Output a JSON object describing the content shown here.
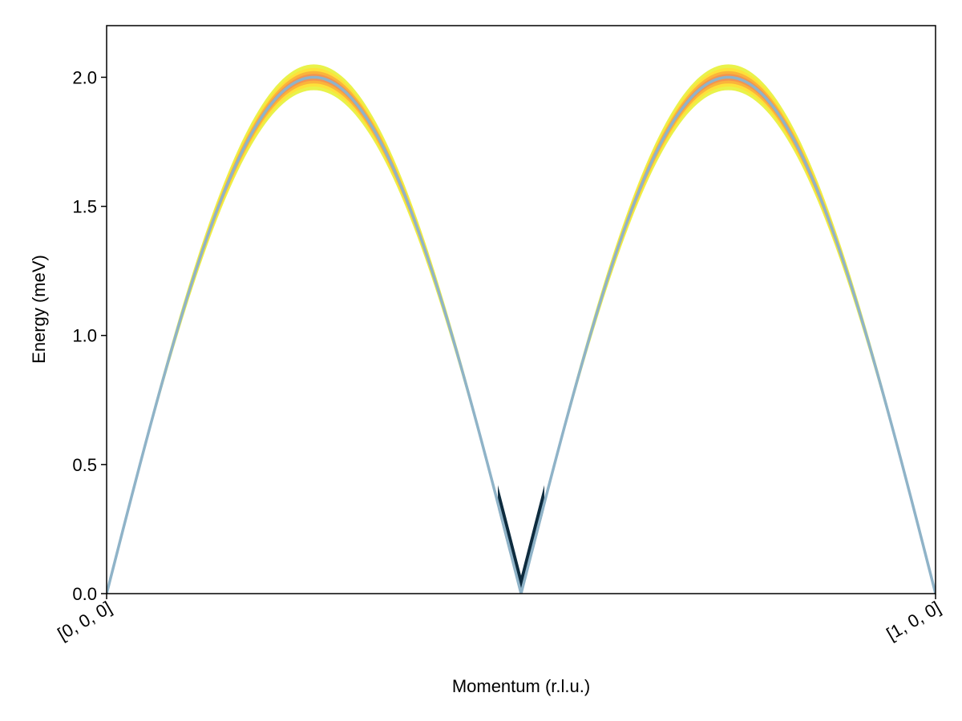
{
  "chart_data": {
    "type": "heatmap",
    "title": "",
    "xlabel": "Momentum (r.l.u.)",
    "ylabel": "Energy (meV)",
    "xlim": [
      0,
      1
    ],
    "ylim": [
      0,
      2.2
    ],
    "x_ticks": [
      {
        "value": 0,
        "label": "[0, 0, 0]"
      },
      {
        "value": 1,
        "label": "[1, 0, 0]"
      }
    ],
    "y_ticks": [
      {
        "value": 0.0,
        "label": "0.0"
      },
      {
        "value": 0.5,
        "label": "0.5"
      },
      {
        "value": 1.0,
        "label": "1.0"
      },
      {
        "value": 1.5,
        "label": "1.5"
      },
      {
        "value": 2.0,
        "label": "2.0"
      }
    ],
    "grid": false,
    "dispersion": {
      "formula": "E = 2*|sin(2*pi*q)|",
      "amplitude": 2.0,
      "q": [
        0,
        0.05,
        0.1,
        0.15,
        0.2,
        0.25,
        0.3,
        0.35,
        0.4,
        0.45,
        0.5,
        0.55,
        0.6,
        0.65,
        0.7,
        0.75,
        0.8,
        0.85,
        0.9,
        0.95,
        1.0
      ],
      "energy": [
        0,
        0.618,
        1.176,
        1.618,
        1.902,
        2.0,
        1.902,
        1.618,
        1.176,
        0.618,
        0,
        0.618,
        1.176,
        1.618,
        1.902,
        2.0,
        1.902,
        1.618,
        1.176,
        0.618,
        0
      ],
      "line_color": "#8fb3c8"
    },
    "intensity_colors": [
      "#e9f24a",
      "#fde13a",
      "#fbb03b",
      "#f28c52",
      "#0d2b3e"
    ],
    "annotations": []
  }
}
